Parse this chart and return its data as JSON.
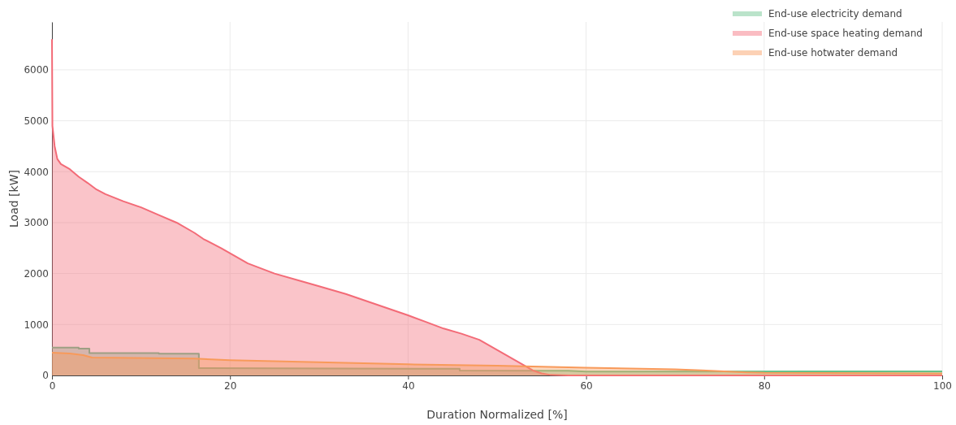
{
  "chart_data": {
    "type": "area",
    "xlabel": "Duration Normalized [%]",
    "ylabel": "Load [kW]",
    "xlim": [
      0,
      100
    ],
    "ylim": [
      0,
      6940
    ],
    "xticks": [
      0,
      20,
      40,
      60,
      80,
      100
    ],
    "yticks": [
      0,
      1000,
      2000,
      3000,
      4000,
      5000,
      6000
    ],
    "grid": true,
    "legend": "top right",
    "series": [
      {
        "name": "End-use electricity demand",
        "color": "#66c28a",
        "x": [
          0,
          3,
          3,
          4.2,
          4.2,
          12,
          12,
          16.5,
          16.5,
          45.8,
          45.8,
          58,
          60,
          100
        ],
        "values": [
          545,
          545,
          525,
          525,
          440,
          440,
          425,
          425,
          145,
          130,
          95,
          90,
          75,
          80
        ]
      },
      {
        "name": "End-use space heating demand",
        "color": "#f36b77",
        "x": [
          0,
          0.05,
          0.3,
          0.6,
          1,
          2,
          3,
          4,
          5,
          6,
          8,
          10,
          12,
          14,
          16,
          17,
          19,
          20,
          22,
          25,
          28,
          30,
          33,
          36,
          38,
          40,
          42,
          44,
          46,
          48,
          50,
          52,
          53,
          54,
          55,
          56,
          58,
          100
        ],
        "values": [
          6600,
          4900,
          4500,
          4250,
          4150,
          4050,
          3900,
          3780,
          3650,
          3560,
          3420,
          3300,
          3150,
          3000,
          2800,
          2680,
          2500,
          2400,
          2200,
          2000,
          1850,
          1750,
          1600,
          1420,
          1300,
          1180,
          1050,
          920,
          820,
          700,
          500,
          300,
          200,
          100,
          40,
          10,
          0,
          0
        ]
      },
      {
        "name": "End-use hotwater demand",
        "color": "#f89a5a",
        "x": [
          0,
          2,
          3.5,
          4.5,
          16,
          20,
          30,
          40,
          50,
          55,
          60,
          70,
          73,
          78,
          80,
          100
        ],
        "values": [
          445,
          430,
          400,
          350,
          330,
          300,
          260,
          218,
          190,
          170,
          150,
          120,
          100,
          60,
          50,
          40
        ]
      }
    ]
  }
}
